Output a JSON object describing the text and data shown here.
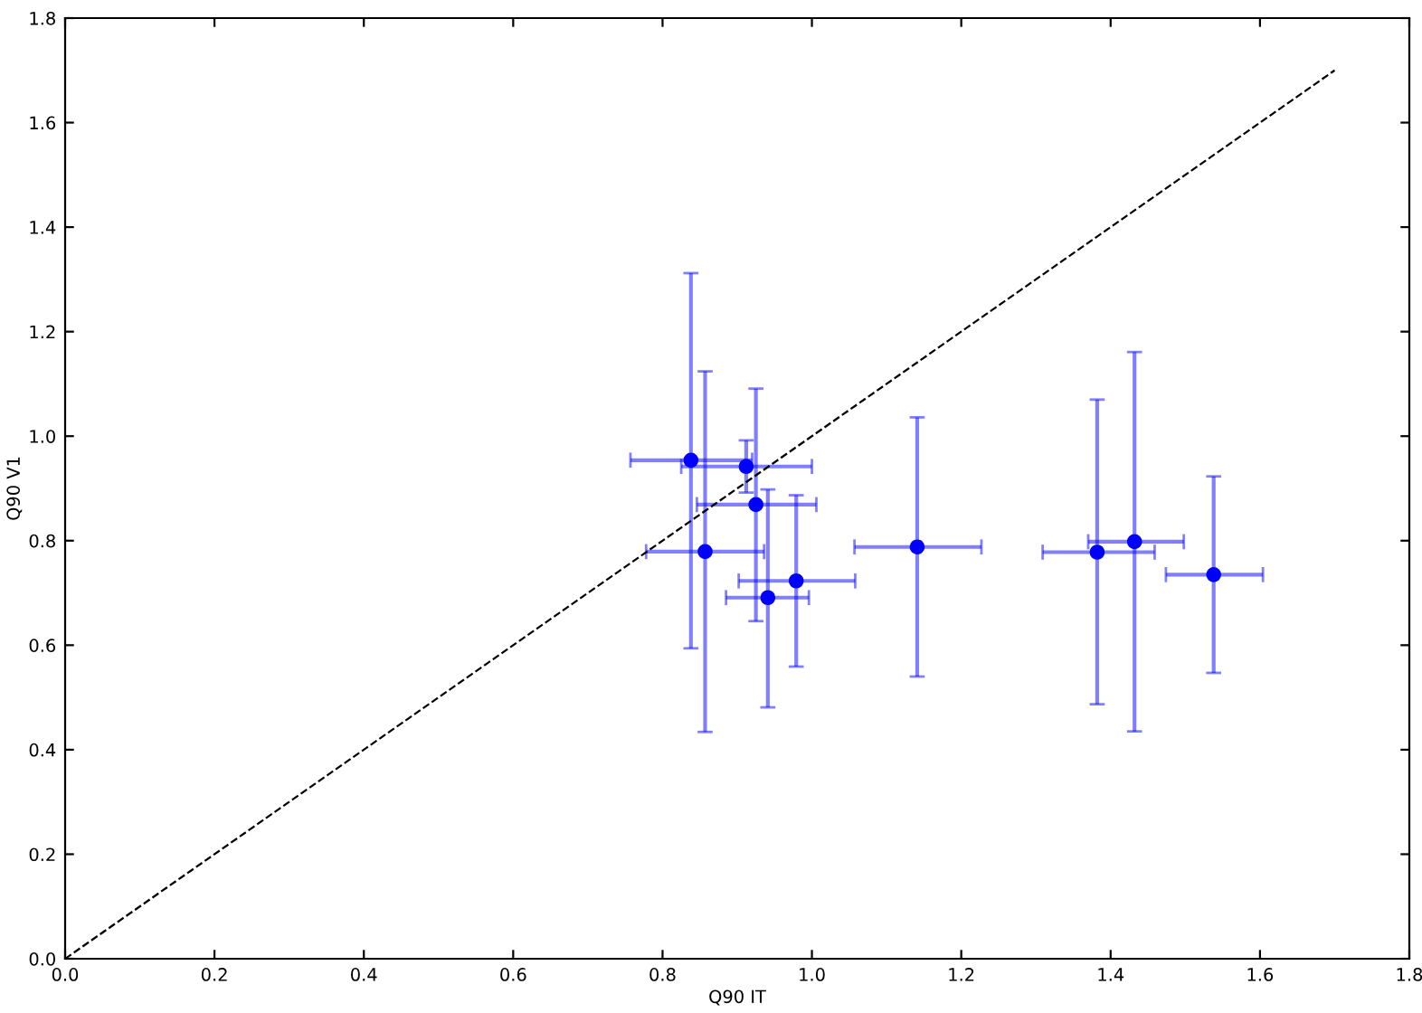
{
  "chart_data": {
    "type": "scatter",
    "xlabel": "Q90 IT",
    "ylabel": "Q90 V1",
    "xlim": [
      0,
      1.8
    ],
    "ylim": [
      0,
      1.8
    ],
    "xticks": [
      {
        "value": 0,
        "label": "0.0"
      },
      0.2,
      0.4,
      0.6,
      0.8,
      {
        "value": 1,
        "label": "1.0"
      },
      1.2,
      1.4,
      1.6,
      1.8
    ],
    "yticks": [
      {
        "value": 0,
        "label": "0.0"
      },
      0.2,
      0.4,
      0.6,
      0.8,
      {
        "value": 1,
        "label": "1.0"
      },
      1.2,
      1.4,
      1.6,
      1.8
    ],
    "grid": false,
    "marker": "circle",
    "series": [
      {
        "color": "#0000ff",
        "x": [
          0.838,
          0.912,
          0.925,
          0.857,
          0.979,
          0.941,
          1.141,
          1.382,
          1.432,
          1.538
        ],
        "values": [
          0.954,
          0.942,
          0.869,
          0.779,
          0.723,
          0.691,
          0.788,
          0.778,
          0.798,
          0.735
        ],
        "errors": [
          [
            0.594,
            1.312
          ],
          [
            0.892,
            0.992
          ],
          [
            0.646,
            1.091
          ],
          [
            0.434,
            1.124
          ],
          [
            0.559,
            0.887
          ],
          [
            0.481,
            0.898
          ],
          [
            0.54,
            1.036
          ],
          [
            0.487,
            1.07
          ],
          [
            0.435,
            1.161
          ],
          [
            0.547,
            0.923
          ]
        ],
        "xerrors": [
          [
            0.757,
            0.92
          ],
          [
            0.825,
            1.0
          ],
          [
            0.846,
            1.006
          ],
          [
            0.778,
            0.936
          ],
          [
            0.902,
            1.058
          ],
          [
            0.885,
            0.996
          ],
          [
            1.057,
            1.227
          ],
          [
            1.309,
            1.459
          ],
          [
            1.37,
            1.498
          ],
          [
            1.474,
            1.604
          ]
        ]
      },
      {
        "type": "line",
        "color": "#000000",
        "line_style": "dashed",
        "marker": "none",
        "x": [
          0,
          1.7
        ],
        "values": [
          0,
          1.7
        ]
      }
    ]
  }
}
